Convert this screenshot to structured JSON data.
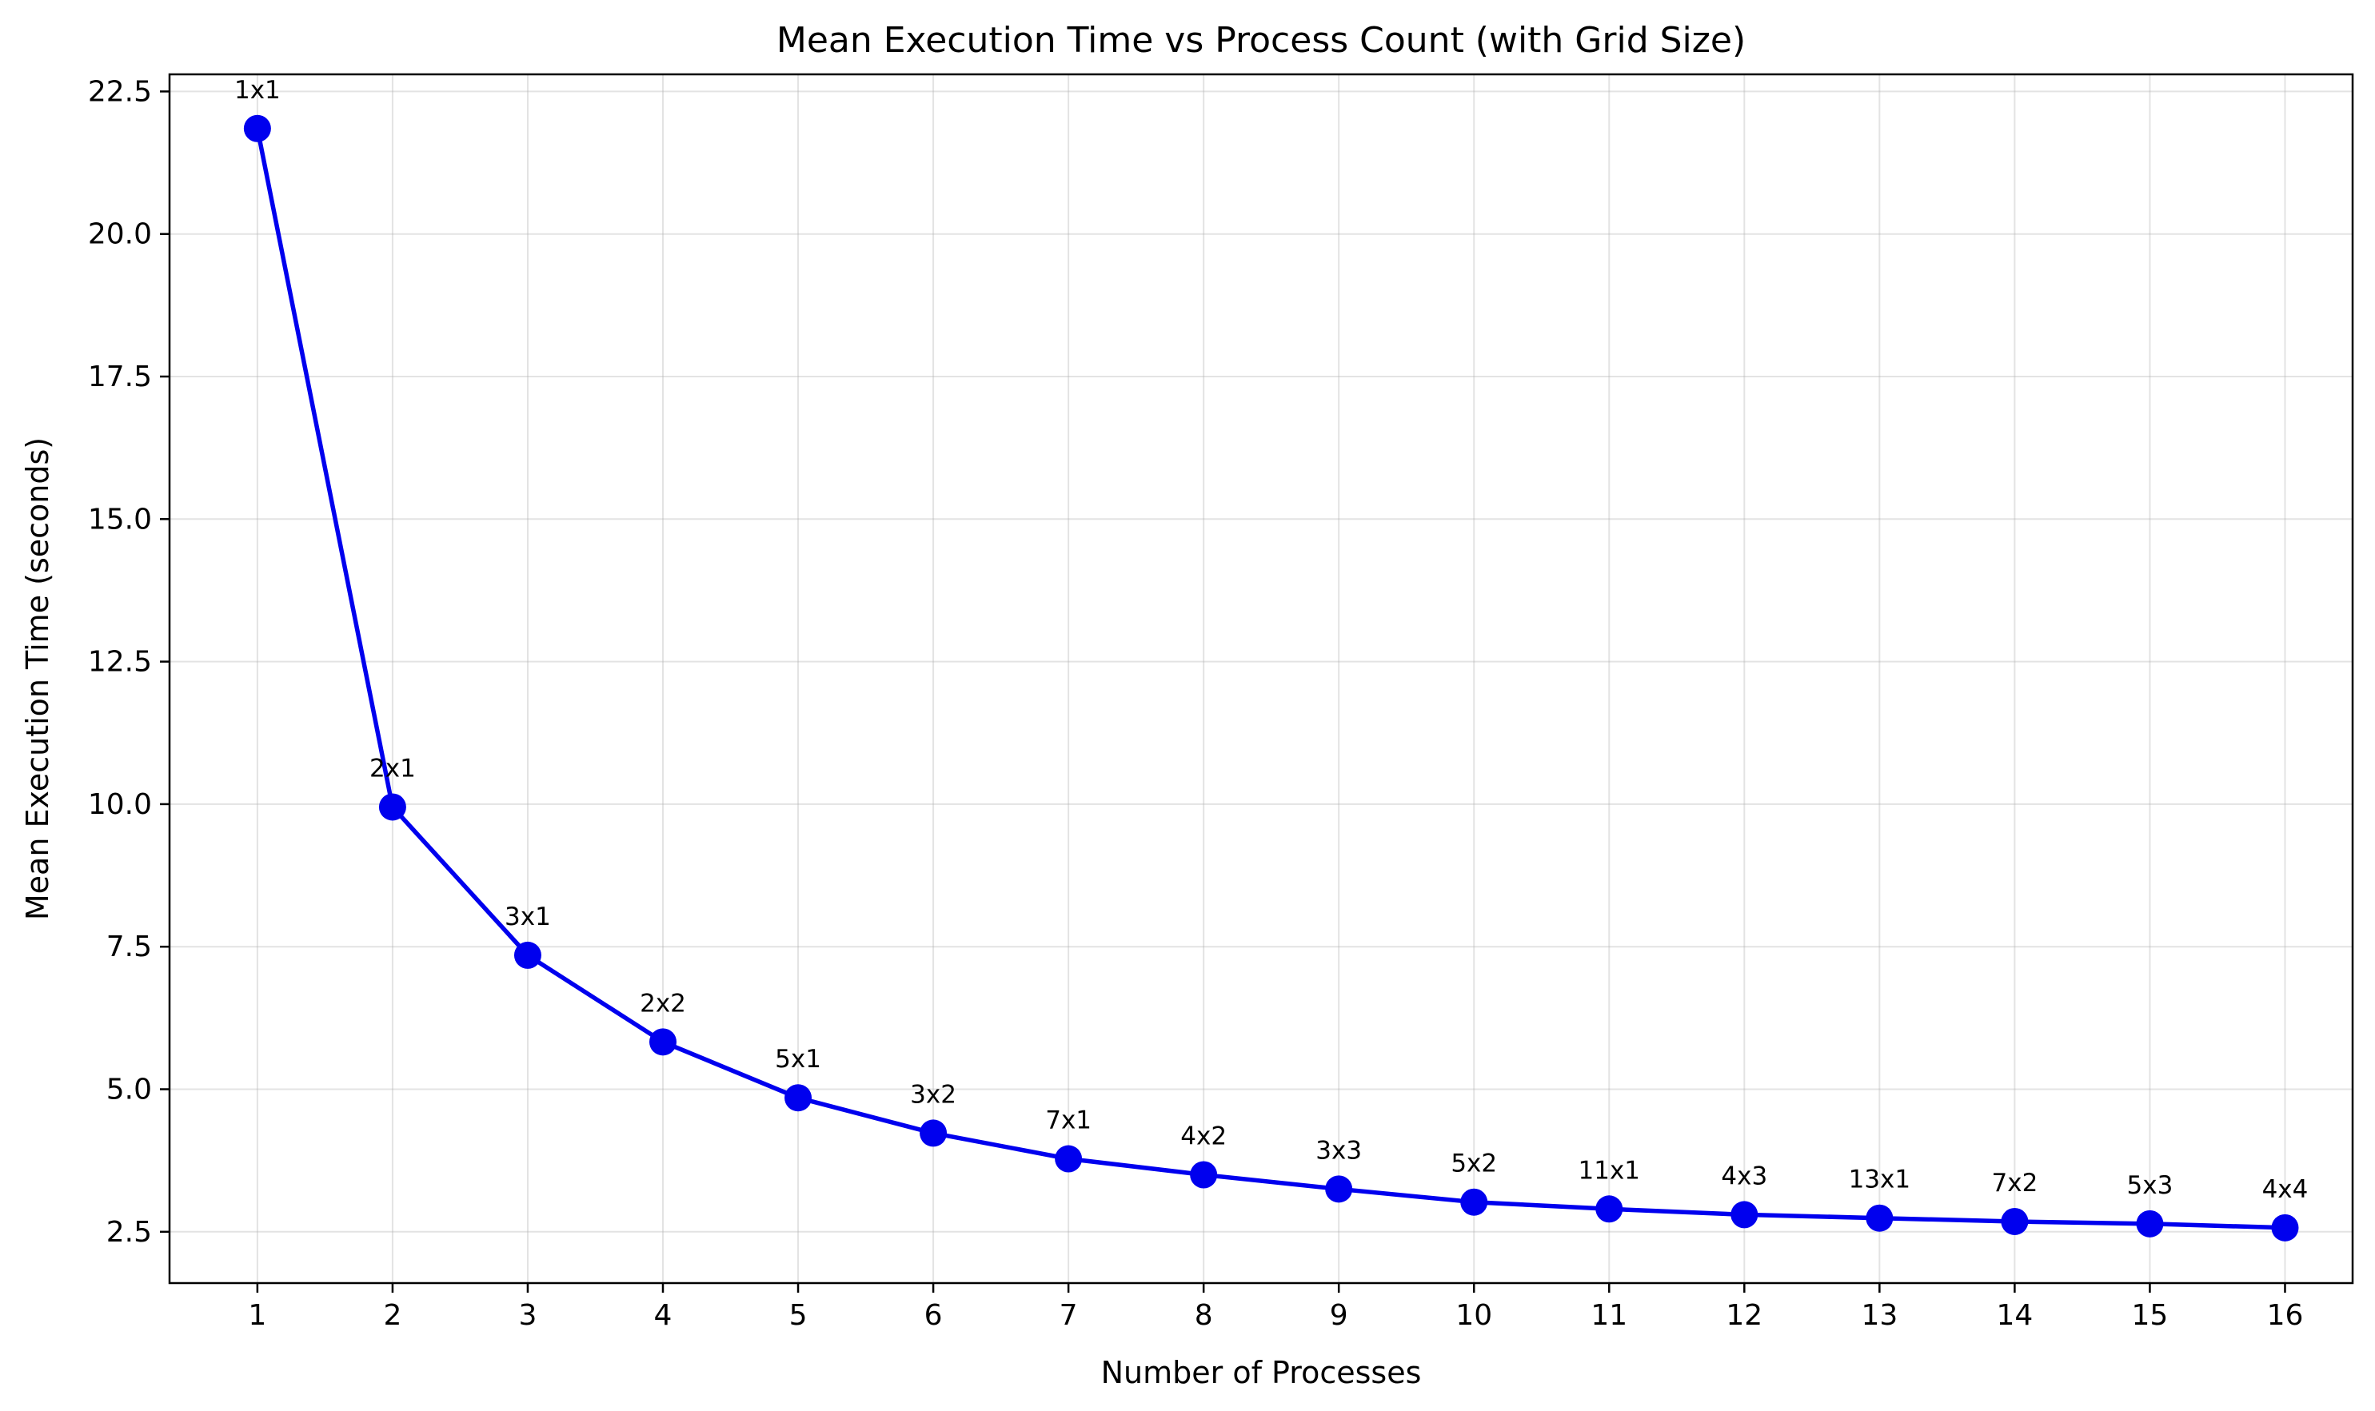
{
  "chart_data": {
    "type": "line",
    "title": "Mean Execution Time vs Process Count (with Grid Size)",
    "xlabel": "Number of Processes",
    "ylabel": "Mean Execution Time (seconds)",
    "x": [
      1,
      2,
      3,
      4,
      5,
      6,
      7,
      8,
      9,
      10,
      11,
      12,
      13,
      14,
      15,
      16
    ],
    "x_ticks": [
      "1",
      "2",
      "3",
      "4",
      "5",
      "6",
      "7",
      "8",
      "9",
      "10",
      "11",
      "12",
      "13",
      "14",
      "15",
      "16"
    ],
    "y_ticks": [
      "2.5",
      "5.0",
      "7.5",
      "10.0",
      "12.5",
      "15.0",
      "17.5",
      "20.0",
      "22.5"
    ],
    "xlim": [
      0.35,
      16.5
    ],
    "ylim": [
      1.6,
      22.8
    ],
    "grid": true,
    "series": [
      {
        "values": [
          21.85,
          9.95,
          7.35,
          5.83,
          4.85,
          4.23,
          3.78,
          3.5,
          3.25,
          3.02,
          2.9,
          2.8,
          2.74,
          2.68,
          2.64,
          2.57
        ],
        "labels": [
          "1x1",
          "2x1",
          "3x1",
          "2x2",
          "5x1",
          "3x2",
          "7x1",
          "4x2",
          "3x3",
          "5x2",
          "11x1",
          "4x3",
          "13x1",
          "7x2",
          "5x3",
          "4x4"
        ],
        "color": "#0000ee",
        "marker": "circle"
      }
    ]
  }
}
